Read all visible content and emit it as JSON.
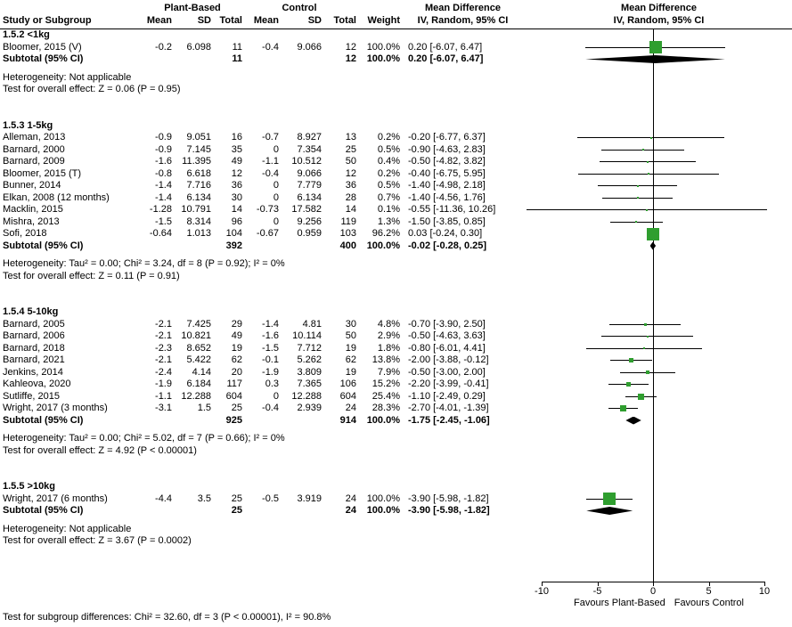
{
  "header": {
    "group1": "Plant-Based",
    "group2": "Control",
    "md_left": "Mean Difference",
    "md_right": "Mean Difference",
    "col_study": "Study or Subgroup",
    "col_mean1": "Mean",
    "col_sd1": "SD",
    "col_total1": "Total",
    "col_mean2": "Mean",
    "col_sd2": "SD",
    "col_total2": "Total",
    "col_weight": "Weight",
    "col_ci": "IV, Random, 95% CI",
    "col_ci_plot": "IV, Random, 95% CI"
  },
  "chart_data": {
    "type": "forest",
    "effect_measure": "Mean Difference",
    "model": "IV, Random, 95% CI",
    "marker_color": "#2f9e2f",
    "diamond_color": "#000000",
    "axis": {
      "min": -10,
      "max": 10,
      "ticks": [
        -10,
        -5,
        0,
        5,
        10
      ]
    },
    "axis_labels": {
      "left": "Favours Plant-Based",
      "right": "Favours Control"
    },
    "groups": [
      {
        "title": "1.5.2 <1kg",
        "studies": [
          {
            "study": "Bloomer, 2015 (V)",
            "mean1": "-0.2",
            "sd1": "6.098",
            "total1": "11",
            "mean2": "-0.4",
            "sd2": "9.066",
            "total2": "12",
            "weight": "100.0%",
            "ci": "0.20 [-6.07, 6.47]",
            "est": 0.2,
            "lo": -6.07,
            "hi": 6.47
          }
        ],
        "subtotal": {
          "study": "Subtotal (95% CI)",
          "total1": "11",
          "total2": "12",
          "weight": "100.0%",
          "ci": "0.20 [-6.07, 6.47]",
          "est": 0.2,
          "lo": -6.07,
          "hi": 6.47
        },
        "heterogeneity": "Heterogeneity: Not applicable",
        "overall_effect": "Test for overall effect: Z = 0.06 (P = 0.95)"
      },
      {
        "title": "1.5.3 1-5kg",
        "studies": [
          {
            "study": "Alleman, 2013",
            "mean1": "-0.9",
            "sd1": "9.051",
            "total1": "16",
            "mean2": "-0.7",
            "sd2": "8.927",
            "total2": "13",
            "weight": "0.2%",
            "ci": "-0.20 [-6.77, 6.37]",
            "est": -0.2,
            "lo": -6.77,
            "hi": 6.37
          },
          {
            "study": "Barnard, 2000",
            "mean1": "-0.9",
            "sd1": "7.145",
            "total1": "35",
            "mean2": "0",
            "sd2": "7.354",
            "total2": "25",
            "weight": "0.5%",
            "ci": "-0.90 [-4.63, 2.83]",
            "est": -0.9,
            "lo": -4.63,
            "hi": 2.83
          },
          {
            "study": "Barnard, 2009",
            "mean1": "-1.6",
            "sd1": "11.395",
            "total1": "49",
            "mean2": "-1.1",
            "sd2": "10.512",
            "total2": "50",
            "weight": "0.4%",
            "ci": "-0.50 [-4.82, 3.82]",
            "est": -0.5,
            "lo": -4.82,
            "hi": 3.82
          },
          {
            "study": "Bloomer, 2015 (T)",
            "mean1": "-0.8",
            "sd1": "6.618",
            "total1": "12",
            "mean2": "-0.4",
            "sd2": "9.066",
            "total2": "12",
            "weight": "0.2%",
            "ci": "-0.40 [-6.75, 5.95]",
            "est": -0.4,
            "lo": -6.75,
            "hi": 5.95
          },
          {
            "study": "Bunner, 2014",
            "mean1": "-1.4",
            "sd1": "7.716",
            "total1": "36",
            "mean2": "0",
            "sd2": "7.779",
            "total2": "36",
            "weight": "0.5%",
            "ci": "-1.40 [-4.98, 2.18]",
            "est": -1.4,
            "lo": -4.98,
            "hi": 2.18
          },
          {
            "study": "Elkan, 2008 (12 months)",
            "mean1": "-1.4",
            "sd1": "6.134",
            "total1": "30",
            "mean2": "0",
            "sd2": "6.134",
            "total2": "28",
            "weight": "0.7%",
            "ci": "-1.40 [-4.56, 1.76]",
            "est": -1.4,
            "lo": -4.56,
            "hi": 1.76
          },
          {
            "study": "Macklin, 2015",
            "mean1": "-1.28",
            "sd1": "10.791",
            "total1": "14",
            "mean2": "-0.73",
            "sd2": "17.582",
            "total2": "14",
            "weight": "0.1%",
            "ci": "-0.55 [-11.36, 10.26]",
            "est": -0.55,
            "lo": -11.36,
            "hi": 10.26
          },
          {
            "study": "Mishra, 2013",
            "mean1": "-1.5",
            "sd1": "8.314",
            "total1": "96",
            "mean2": "0",
            "sd2": "9.256",
            "total2": "119",
            "weight": "1.3%",
            "ci": "-1.50 [-3.85, 0.85]",
            "est": -1.5,
            "lo": -3.85,
            "hi": 0.85
          },
          {
            "study": "Sofi, 2018",
            "mean1": "-0.64",
            "sd1": "1.013",
            "total1": "104",
            "mean2": "-0.67",
            "sd2": "0.959",
            "total2": "103",
            "weight": "96.2%",
            "ci": "0.03 [-0.24, 0.30]",
            "est": 0.03,
            "lo": -0.24,
            "hi": 0.3
          }
        ],
        "subtotal": {
          "study": "Subtotal (95% CI)",
          "total1": "392",
          "total2": "400",
          "weight": "100.0%",
          "ci": "-0.02 [-0.28, 0.25]",
          "est": -0.02,
          "lo": -0.28,
          "hi": 0.25
        },
        "heterogeneity": "Heterogeneity: Tau² = 0.00; Chi² = 3.24, df = 8 (P = 0.92); I² = 0%",
        "overall_effect": "Test for overall effect: Z = 0.11 (P = 0.91)"
      },
      {
        "title": "1.5.4 5-10kg",
        "studies": [
          {
            "study": "Barnard, 2005",
            "mean1": "-2.1",
            "sd1": "7.425",
            "total1": "29",
            "mean2": "-1.4",
            "sd2": "4.81",
            "total2": "30",
            "weight": "4.8%",
            "ci": "-0.70 [-3.90, 2.50]",
            "est": -0.7,
            "lo": -3.9,
            "hi": 2.5
          },
          {
            "study": "Barnard, 2006",
            "mean1": "-2.1",
            "sd1": "10.821",
            "total1": "49",
            "mean2": "-1.6",
            "sd2": "10.114",
            "total2": "50",
            "weight": "2.9%",
            "ci": "-0.50 [-4.63, 3.63]",
            "est": -0.5,
            "lo": -4.63,
            "hi": 3.63
          },
          {
            "study": "Barnard, 2018",
            "mean1": "-2.3",
            "sd1": "8.652",
            "total1": "19",
            "mean2": "-1.5",
            "sd2": "7.712",
            "total2": "19",
            "weight": "1.8%",
            "ci": "-0.80 [-6.01, 4.41]",
            "est": -0.8,
            "lo": -6.01,
            "hi": 4.41
          },
          {
            "study": "Barnard, 2021",
            "mean1": "-2.1",
            "sd1": "5.422",
            "total1": "62",
            "mean2": "-0.1",
            "sd2": "5.262",
            "total2": "62",
            "weight": "13.8%",
            "ci": "-2.00 [-3.88, -0.12]",
            "est": -2.0,
            "lo": -3.88,
            "hi": -0.12
          },
          {
            "study": "Jenkins, 2014",
            "mean1": "-2.4",
            "sd1": "4.14",
            "total1": "20",
            "mean2": "-1.9",
            "sd2": "3.809",
            "total2": "19",
            "weight": "7.9%",
            "ci": "-0.50 [-3.00, 2.00]",
            "est": -0.5,
            "lo": -3.0,
            "hi": 2.0
          },
          {
            "study": "Kahleova, 2020",
            "mean1": "-1.9",
            "sd1": "6.184",
            "total1": "117",
            "mean2": "0.3",
            "sd2": "7.365",
            "total2": "106",
            "weight": "15.2%",
            "ci": "-2.20 [-3.99, -0.41]",
            "est": -2.2,
            "lo": -3.99,
            "hi": -0.41
          },
          {
            "study": "Sutliffe, 2015",
            "mean1": "-1.1",
            "sd1": "12.288",
            "total1": "604",
            "mean2": "0",
            "sd2": "12.288",
            "total2": "604",
            "weight": "25.4%",
            "ci": "-1.10 [-2.49, 0.29]",
            "est": -1.1,
            "lo": -2.49,
            "hi": 0.29
          },
          {
            "study": "Wright, 2017 (3 months)",
            "mean1": "-3.1",
            "sd1": "1.5",
            "total1": "25",
            "mean2": "-0.4",
            "sd2": "2.939",
            "total2": "24",
            "weight": "28.3%",
            "ci": "-2.70 [-4.01, -1.39]",
            "est": -2.7,
            "lo": -4.01,
            "hi": -1.39
          }
        ],
        "subtotal": {
          "study": "Subtotal (95% CI)",
          "total1": "925",
          "total2": "914",
          "weight": "100.0%",
          "ci": "-1.75 [-2.45, -1.06]",
          "est": -1.75,
          "lo": -2.45,
          "hi": -1.06
        },
        "heterogeneity": "Heterogeneity: Tau² = 0.00; Chi² = 5.02, df = 7 (P = 0.66); I² = 0%",
        "overall_effect": "Test for overall effect: Z = 4.92 (P < 0.00001)"
      },
      {
        "title": "1.5.5 >10kg",
        "studies": [
          {
            "study": "Wright, 2017 (6 months)",
            "mean1": "-4.4",
            "sd1": "3.5",
            "total1": "25",
            "mean2": "-0.5",
            "sd2": "3.919",
            "total2": "24",
            "weight": "100.0%",
            "ci": "-3.90 [-5.98, -1.82]",
            "est": -3.9,
            "lo": -5.98,
            "hi": -1.82
          }
        ],
        "subtotal": {
          "study": "Subtotal (95% CI)",
          "total1": "25",
          "total2": "24",
          "weight": "100.0%",
          "ci": "-3.90 [-5.98, -1.82]",
          "est": -3.9,
          "lo": -5.98,
          "hi": -1.82
        },
        "heterogeneity": "Heterogeneity: Not applicable",
        "overall_effect": "Test for overall effect: Z = 3.67 (P = 0.0002)"
      }
    ],
    "subgroup_difference": "Test for subgroup differences: Chi² = 32.60, df = 3 (P < 0.00001), I² = 90.8%"
  }
}
